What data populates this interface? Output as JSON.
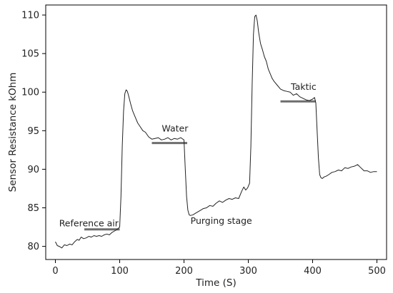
{
  "chart_data": {
    "type": "line",
    "title": "",
    "xlabel": "Time (S)",
    "ylabel": "Sensor Resistance kOhm",
    "xlim": [
      -15,
      515
    ],
    "ylim": [
      78.3,
      111.3
    ],
    "xticks": [
      0,
      100,
      200,
      300,
      400,
      500
    ],
    "yticks": [
      80,
      85,
      90,
      95,
      100,
      105,
      110
    ],
    "grid": false,
    "legend": "none",
    "colors": {
      "line": "#222222",
      "marker": "#6e6e6e",
      "text": "#222222",
      "axis": "#000000"
    },
    "series": [
      {
        "x": [
          0,
          3,
          6,
          10,
          14,
          18,
          22,
          26,
          30,
          34,
          37,
          40,
          44,
          48,
          52,
          56,
          60,
          64,
          68,
          72,
          76,
          80,
          84,
          88,
          92,
          96,
          100,
          102,
          104,
          106,
          108,
          110,
          112,
          114,
          117,
          120,
          124,
          128,
          132,
          136,
          140,
          145,
          150,
          155,
          160,
          165,
          170,
          175,
          180,
          185,
          190,
          195,
          200,
          202,
          204,
          206,
          208,
          210,
          214,
          218,
          222,
          226,
          230,
          235,
          240,
          245,
          250,
          255,
          260,
          265,
          270,
          275,
          280,
          285,
          290,
          293,
          296,
          299,
          302,
          304,
          306,
          308,
          310,
          312,
          314,
          316,
          319,
          322,
          325,
          328,
          331,
          334,
          337,
          340,
          345,
          350,
          355,
          360,
          365,
          370,
          375,
          380,
          385,
          390,
          395,
          400,
          403,
          405,
          407,
          409,
          411,
          413,
          415,
          418,
          421,
          425,
          430,
          435,
          440,
          445,
          450,
          455,
          460,
          465,
          470,
          475,
          480,
          485,
          490,
          495,
          500
        ],
        "y": [
          80.6,
          80.1,
          80.0,
          79.8,
          80.2,
          80.1,
          80.3,
          80.2,
          80.6,
          80.9,
          80.8,
          81.2,
          81.0,
          81.1,
          81.3,
          81.2,
          81.4,
          81.3,
          81.4,
          81.3,
          81.5,
          81.6,
          81.5,
          81.8,
          82.0,
          82.2,
          82.5,
          86.5,
          93.0,
          97.5,
          99.8,
          100.3,
          100.1,
          99.5,
          98.5,
          97.6,
          96.8,
          96.0,
          95.5,
          95.0,
          94.8,
          94.2,
          93.9,
          94.0,
          94.1,
          93.8,
          93.9,
          94.1,
          93.8,
          94.0,
          93.9,
          94.1,
          93.8,
          90.0,
          86.5,
          84.7,
          84.1,
          84.0,
          84.1,
          84.3,
          84.5,
          84.7,
          84.9,
          85.0,
          85.3,
          85.2,
          85.6,
          85.9,
          85.7,
          86.0,
          86.2,
          86.1,
          86.3,
          86.2,
          87.2,
          87.7,
          87.3,
          87.6,
          88.2,
          93.0,
          101.0,
          107.5,
          109.8,
          110.0,
          109.2,
          107.8,
          106.3,
          105.5,
          104.6,
          104.0,
          103.0,
          102.4,
          101.8,
          101.4,
          100.9,
          100.4,
          100.2,
          100.1,
          100.0,
          99.6,
          99.8,
          99.4,
          99.2,
          99.0,
          98.9,
          99.1,
          99.3,
          98.6,
          95.0,
          91.5,
          89.3,
          88.9,
          88.8,
          89.0,
          89.1,
          89.3,
          89.6,
          89.7,
          89.9,
          89.8,
          90.2,
          90.1,
          90.3,
          90.4,
          90.6,
          90.2,
          89.8,
          89.8,
          89.6,
          89.7,
          89.7
        ]
      }
    ],
    "stage_markers": [
      {
        "x1": 45,
        "x2": 100,
        "y": 82.2
      },
      {
        "x1": 150,
        "x2": 205,
        "y": 93.4
      },
      {
        "x1": 350,
        "x2": 405,
        "y": 98.8
      }
    ],
    "annotations": [
      {
        "text": "Reference air",
        "x": 52,
        "y": 82.6
      },
      {
        "text": "Water",
        "x": 186,
        "y": 94.9
      },
      {
        "text": "Purging stage",
        "x": 258,
        "y": 82.9
      },
      {
        "text": "Taktic",
        "x": 386,
        "y": 100.3
      }
    ]
  }
}
